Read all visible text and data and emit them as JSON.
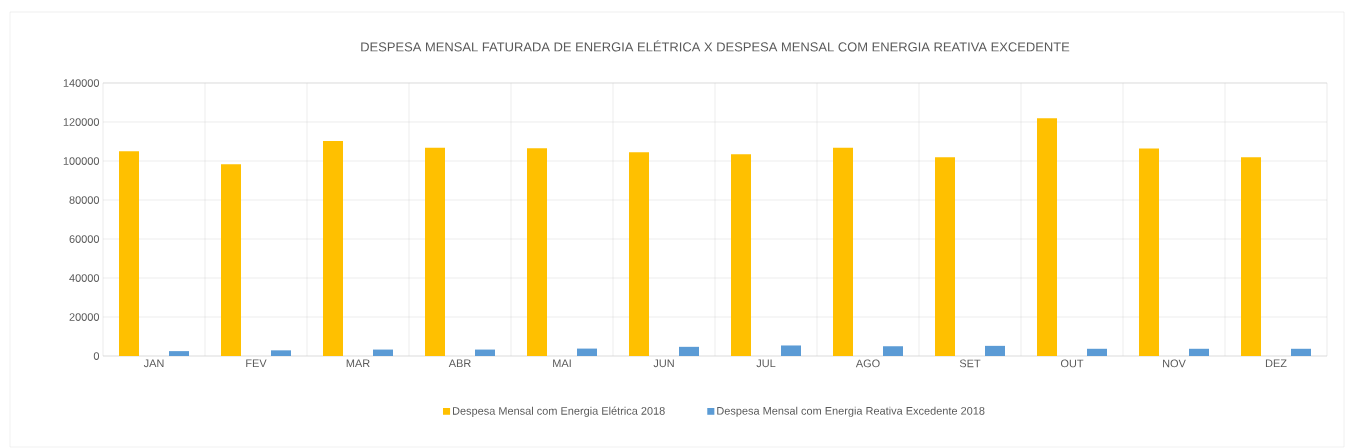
{
  "chart_data": {
    "type": "bar",
    "title": "DESPESA MENSAL FATURADA DE ENERGIA ELÉTRICA X DESPESA MENSAL COM ENERGIA REATIVA EXCEDENTE",
    "categories": [
      "JAN",
      "FEV",
      "MAR",
      "ABR",
      "MAI",
      "JUN",
      "JUL",
      "AGO",
      "SET",
      "OUT",
      "NOV",
      "DEZ"
    ],
    "series": [
      {
        "name": "Despesa Mensal com Energia Elétrica 2018",
        "color": "#ffc000",
        "values": [
          105000,
          98300,
          110300,
          106800,
          106600,
          104500,
          103400,
          106800,
          101900,
          121900,
          106400,
          101900
        ]
      },
      {
        "name": "Despesa Mensal com Energia Reativa Excedente 2018",
        "color": "#5b9bd5",
        "values": [
          2500,
          2900,
          3300,
          3300,
          3800,
          4700,
          5400,
          5000,
          5200,
          3700,
          3700,
          3700
        ]
      }
    ],
    "ylim": [
      0,
      140000
    ],
    "yticks": [
      0,
      20000,
      40000,
      60000,
      80000,
      100000,
      120000,
      140000
    ],
    "grid": true,
    "legend": "bottom"
  }
}
